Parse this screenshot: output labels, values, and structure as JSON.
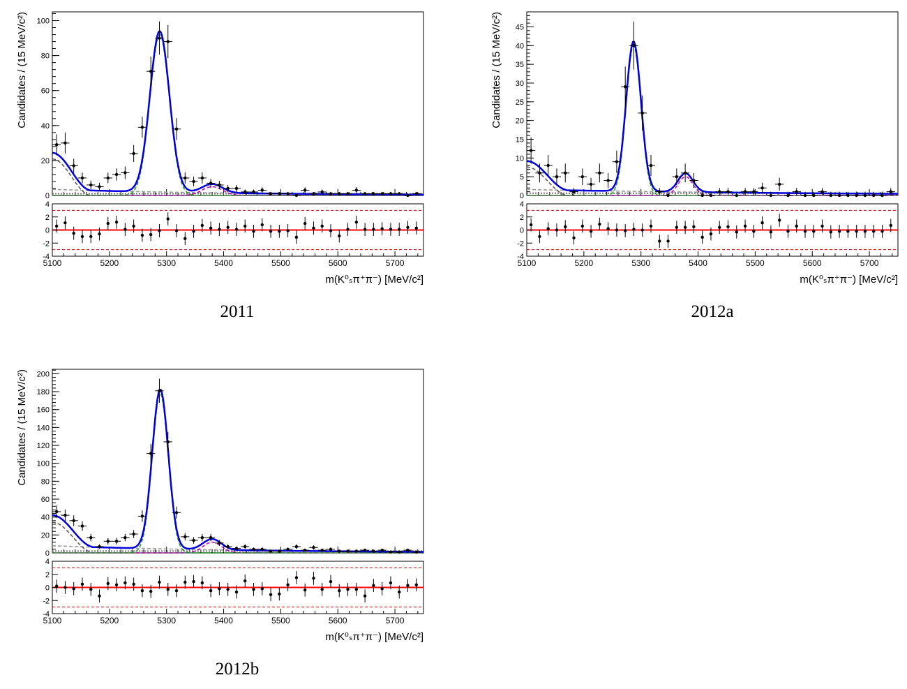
{
  "chart_data": [
    {
      "id": "2011",
      "type": "scatter",
      "caption": "2011",
      "ylabel": "Candidates / (15 MeV/c²)",
      "xlabel": "m(K⁰ₛπ⁺π⁻) [MeV/c²]",
      "xlim": [
        5100,
        5750
      ],
      "ylim": [
        0,
        105
      ],
      "yticks": [
        0,
        20,
        40,
        60,
        80,
        100
      ],
      "xticks": [
        5100,
        5200,
        5300,
        5400,
        5500,
        5600,
        5700
      ],
      "bin_width": 15,
      "points": [
        [
          5107.5,
          29,
          6
        ],
        [
          5122.5,
          30,
          6
        ],
        [
          5137.5,
          17,
          4
        ],
        [
          5152.5,
          10,
          3
        ],
        [
          5167.5,
          6,
          2.5
        ],
        [
          5182.5,
          5,
          2.3
        ],
        [
          5197.5,
          10,
          3
        ],
        [
          5212.5,
          12,
          3.5
        ],
        [
          5227.5,
          13,
          3.6
        ],
        [
          5242.5,
          24,
          4.9
        ],
        [
          5257.5,
          39,
          6
        ],
        [
          5272.5,
          71,
          8.4
        ],
        [
          5287.5,
          90,
          9.5
        ],
        [
          5302.5,
          88,
          9.4
        ],
        [
          5317.5,
          38,
          6.2
        ],
        [
          5332.5,
          10,
          3.2
        ],
        [
          5347.5,
          8,
          2.8
        ],
        [
          5362.5,
          10,
          3.2
        ],
        [
          5377.5,
          7,
          2.6
        ],
        [
          5392.5,
          6,
          2.4
        ],
        [
          5407.5,
          4,
          2
        ],
        [
          5422.5,
          4,
          2
        ],
        [
          5437.5,
          2,
          1.4
        ],
        [
          5452.5,
          2,
          1.4
        ],
        [
          5467.5,
          3,
          1.7
        ],
        [
          5482.5,
          1,
          1
        ],
        [
          5497.5,
          1,
          1
        ],
        [
          5512.5,
          1,
          1
        ],
        [
          5527.5,
          0,
          1
        ],
        [
          5542.5,
          3,
          1.7
        ],
        [
          5557.5,
          1,
          1
        ],
        [
          5572.5,
          2,
          1.4
        ],
        [
          5587.5,
          1,
          1
        ],
        [
          5602.5,
          1,
          1
        ],
        [
          5617.5,
          1,
          1
        ],
        [
          5632.5,
          3,
          1.7
        ],
        [
          5647.5,
          1,
          1
        ],
        [
          5662.5,
          1,
          1
        ],
        [
          5677.5,
          1,
          1
        ],
        [
          5692.5,
          1,
          1
        ],
        [
          5707.5,
          1,
          1
        ],
        [
          5722.5,
          0,
          1
        ],
        [
          5737.5,
          1,
          1
        ]
      ],
      "pulls": [
        [
          5107.5,
          0.6
        ],
        [
          5122.5,
          1.1
        ],
        [
          5137.5,
          -0.5
        ],
        [
          5152.5,
          -1.0
        ],
        [
          5167.5,
          -1.0
        ],
        [
          5182.5,
          -0.6
        ],
        [
          5197.5,
          1.0
        ],
        [
          5212.5,
          1.2
        ],
        [
          5227.5,
          0.1
        ],
        [
          5242.5,
          0.6
        ],
        [
          5257.5,
          -0.8
        ],
        [
          5272.5,
          -0.7
        ],
        [
          5287.5,
          -0.1
        ],
        [
          5302.5,
          1.7
        ],
        [
          5317.5,
          -0.1
        ],
        [
          5332.5,
          -1.3
        ],
        [
          5347.5,
          -0.2
        ],
        [
          5362.5,
          0.7
        ],
        [
          5377.5,
          0.3
        ],
        [
          5392.5,
          0.1
        ],
        [
          5407.5,
          0.4
        ],
        [
          5422.5,
          0.1
        ],
        [
          5437.5,
          0.6
        ],
        [
          5452.5,
          -0.2
        ],
        [
          5467.5,
          0.8
        ],
        [
          5482.5,
          -0.2
        ],
        [
          5497.5,
          -0.2
        ],
        [
          5512.5,
          -0.1
        ],
        [
          5527.5,
          -1.1
        ],
        [
          5542.5,
          1.0
        ],
        [
          5557.5,
          0.3
        ],
        [
          5572.5,
          0.6
        ],
        [
          5587.5,
          -0.1
        ],
        [
          5602.5,
          -0.9
        ],
        [
          5617.5,
          0.1
        ],
        [
          5632.5,
          1.2
        ],
        [
          5647.5,
          0.1
        ],
        [
          5662.5,
          0.1
        ],
        [
          5677.5,
          0.2
        ],
        [
          5692.5,
          0.1
        ],
        [
          5707.5,
          0.1
        ],
        [
          5722.5,
          0.4
        ],
        [
          5737.5,
          0.3
        ]
      ],
      "pull_ylim": [
        -4,
        4
      ],
      "pull_yticks": [
        -4,
        -2,
        0,
        2,
        4
      ],
      "pull_bands": [
        -3,
        3
      ],
      "model": {
        "signal_mean": 5288,
        "signal_sigma": 17,
        "signal_amp": 92,
        "peaking_mean": 5380,
        "peaking_sigma": 18,
        "peaking_amp": 5,
        "partreco_amp": 22,
        "partreco_end": 5165,
        "comb_amp": 3.5,
        "comb_slope": 0.003,
        "grey2_amp": 1
      }
    },
    {
      "id": "2012a",
      "type": "scatter",
      "caption": "2012a",
      "ylabel": "Candidates / (15 MeV/c²)",
      "xlabel": "m(K⁰ₛπ⁺π⁻) [MeV/c²]",
      "xlim": [
        5100,
        5750
      ],
      "ylim": [
        0,
        49
      ],
      "yticks": [
        0,
        5,
        10,
        15,
        20,
        25,
        30,
        35,
        40,
        45
      ],
      "xticks": [
        5100,
        5200,
        5300,
        5400,
        5500,
        5600,
        5700
      ],
      "bin_width": 15,
      "points": [
        [
          5107.5,
          12,
          3.5
        ],
        [
          5122.5,
          6,
          2.5
        ],
        [
          5137.5,
          8,
          2.8
        ],
        [
          5152.5,
          5,
          2.2
        ],
        [
          5167.5,
          6,
          2.5
        ],
        [
          5182.5,
          1,
          1
        ],
        [
          5197.5,
          5,
          2.2
        ],
        [
          5212.5,
          3,
          1.7
        ],
        [
          5227.5,
          6,
          2.5
        ],
        [
          5242.5,
          4,
          2
        ],
        [
          5257.5,
          9,
          3
        ],
        [
          5272.5,
          29,
          5.4
        ],
        [
          5287.5,
          40,
          6.4
        ],
        [
          5302.5,
          22,
          4.7
        ],
        [
          5317.5,
          8,
          2.8
        ],
        [
          5332.5,
          1,
          1
        ],
        [
          5347.5,
          0,
          1
        ],
        [
          5362.5,
          5,
          2.2
        ],
        [
          5377.5,
          6,
          2.5
        ],
        [
          5392.5,
          4,
          2
        ],
        [
          5407.5,
          0,
          1
        ],
        [
          5422.5,
          0,
          1
        ],
        [
          5437.5,
          1,
          1
        ],
        [
          5452.5,
          1,
          1
        ],
        [
          5467.5,
          0,
          1
        ],
        [
          5482.5,
          1,
          1
        ],
        [
          5497.5,
          1,
          1
        ],
        [
          5512.5,
          2,
          1.4
        ],
        [
          5527.5,
          0,
          1
        ],
        [
          5542.5,
          3,
          1.7
        ],
        [
          5557.5,
          0,
          1
        ],
        [
          5572.5,
          1,
          1
        ],
        [
          5587.5,
          0,
          1
        ],
        [
          5602.5,
          0,
          1
        ],
        [
          5617.5,
          1,
          1
        ],
        [
          5632.5,
          0,
          1
        ],
        [
          5647.5,
          0,
          1
        ],
        [
          5662.5,
          0,
          1
        ],
        [
          5677.5,
          0,
          1
        ],
        [
          5692.5,
          0,
          1
        ],
        [
          5707.5,
          0,
          1
        ],
        [
          5722.5,
          0,
          1
        ],
        [
          5737.5,
          1,
          1
        ]
      ],
      "pulls": [
        [
          5107.5,
          0.8
        ],
        [
          5122.5,
          -1.0
        ],
        [
          5137.5,
          0.2
        ],
        [
          5152.5,
          0.0
        ],
        [
          5167.5,
          0.5
        ],
        [
          5182.5,
          -1.2
        ],
        [
          5197.5,
          0.6
        ],
        [
          5212.5,
          -0.2
        ],
        [
          5227.5,
          0.9
        ],
        [
          5242.5,
          0.2
        ],
        [
          5257.5,
          0.0
        ],
        [
          5272.5,
          -0.1
        ],
        [
          5287.5,
          0.1
        ],
        [
          5302.5,
          0.0
        ],
        [
          5317.5,
          0.6
        ],
        [
          5332.5,
          -1.7
        ],
        [
          5347.5,
          -1.7
        ],
        [
          5362.5,
          0.4
        ],
        [
          5377.5,
          0.4
        ],
        [
          5392.5,
          0.5
        ],
        [
          5407.5,
          -1.1
        ],
        [
          5422.5,
          -0.6
        ],
        [
          5437.5,
          0.4
        ],
        [
          5452.5,
          0.5
        ],
        [
          5467.5,
          -0.3
        ],
        [
          5482.5,
          0.6
        ],
        [
          5497.5,
          -0.2
        ],
        [
          5512.5,
          1.1
        ],
        [
          5527.5,
          -0.3
        ],
        [
          5542.5,
          1.5
        ],
        [
          5557.5,
          -0.2
        ],
        [
          5572.5,
          0.6
        ],
        [
          5587.5,
          -0.2
        ],
        [
          5602.5,
          -0.2
        ],
        [
          5617.5,
          0.6
        ],
        [
          5632.5,
          -0.3
        ],
        [
          5647.5,
          -0.2
        ],
        [
          5662.5,
          -0.2
        ],
        [
          5677.5,
          -0.2
        ],
        [
          5692.5,
          -0.2
        ],
        [
          5707.5,
          -0.2
        ],
        [
          5722.5,
          -0.2
        ],
        [
          5737.5,
          0.7
        ]
      ],
      "pull_ylim": [
        -4,
        4
      ],
      "pull_yticks": [
        -4,
        -2,
        0,
        2,
        4
      ],
      "pull_bands": [
        -3,
        3
      ],
      "model": {
        "signal_mean": 5287,
        "signal_sigma": 13,
        "signal_amp": 40,
        "peaking_mean": 5378,
        "peaking_sigma": 13,
        "peaking_amp": 5,
        "partreco_amp": 8,
        "partreco_end": 5170,
        "comb_amp": 1.6,
        "comb_slope": 0.002,
        "grey2_amp": 0.6
      }
    },
    {
      "id": "2012b",
      "type": "scatter",
      "caption": "2012b",
      "ylabel": "Candidates / (15 MeV/c²)",
      "xlabel": "m(K⁰ₛπ⁺π⁻) [MeV/c²]",
      "xlim": [
        5100,
        5750
      ],
      "ylim": [
        0,
        205
      ],
      "yticks": [
        0,
        20,
        40,
        60,
        80,
        100,
        120,
        140,
        160,
        180,
        200
      ],
      "xticks": [
        5100,
        5200,
        5300,
        5400,
        5500,
        5600,
        5700
      ],
      "bin_width": 15,
      "points": [
        [
          5107.5,
          46,
          7
        ],
        [
          5122.5,
          42,
          6.5
        ],
        [
          5137.5,
          36,
          6
        ],
        [
          5152.5,
          30,
          5.5
        ],
        [
          5167.5,
          17,
          4.1
        ],
        [
          5182.5,
          7,
          2.6
        ],
        [
          5197.5,
          13,
          3.6
        ],
        [
          5212.5,
          13,
          3.6
        ],
        [
          5227.5,
          17,
          4.1
        ],
        [
          5242.5,
          21,
          4.6
        ],
        [
          5257.5,
          41,
          6.4
        ],
        [
          5272.5,
          111,
          10.5
        ],
        [
          5287.5,
          181,
          13.5
        ],
        [
          5302.5,
          124,
          11.1
        ],
        [
          5317.5,
          45,
          6.7
        ],
        [
          5332.5,
          18,
          4.2
        ],
        [
          5347.5,
          14,
          3.7
        ],
        [
          5362.5,
          17,
          4.1
        ],
        [
          5377.5,
          17,
          4.1
        ],
        [
          5392.5,
          11,
          3.3
        ],
        [
          5407.5,
          7,
          2.6
        ],
        [
          5422.5,
          5,
          2.2
        ],
        [
          5437.5,
          7,
          2.6
        ],
        [
          5452.5,
          4,
          2
        ],
        [
          5467.5,
          4,
          2
        ],
        [
          5482.5,
          2,
          1.4
        ],
        [
          5497.5,
          2,
          1.4
        ],
        [
          5512.5,
          4,
          2
        ],
        [
          5527.5,
          7,
          2.6
        ],
        [
          5542.5,
          3,
          1.7
        ],
        [
          5557.5,
          6,
          2.4
        ],
        [
          5572.5,
          3,
          1.7
        ],
        [
          5587.5,
          4,
          2
        ],
        [
          5602.5,
          2,
          1.4
        ],
        [
          5617.5,
          2,
          1.4
        ],
        [
          5632.5,
          2,
          1.4
        ],
        [
          5647.5,
          3,
          1.7
        ],
        [
          5662.5,
          2,
          1.4
        ],
        [
          5677.5,
          3,
          1.7
        ],
        [
          5692.5,
          1,
          1
        ],
        [
          5707.5,
          1,
          1
        ],
        [
          5722.5,
          3,
          1.7
        ],
        [
          5737.5,
          1,
          1
        ]
      ],
      "pulls": [
        [
          5107.5,
          0.2
        ],
        [
          5122.5,
          0.0
        ],
        [
          5137.5,
          -0.2
        ],
        [
          5152.5,
          0.5
        ],
        [
          5167.5,
          -0.3
        ],
        [
          5182.5,
          -1.3
        ],
        [
          5197.5,
          0.6
        ],
        [
          5212.5,
          0.4
        ],
        [
          5227.5,
          0.7
        ],
        [
          5242.5,
          0.5
        ],
        [
          5257.5,
          -0.5
        ],
        [
          5272.5,
          -0.6
        ],
        [
          5287.5,
          0.8
        ],
        [
          5302.5,
          -0.3
        ],
        [
          5317.5,
          -0.5
        ],
        [
          5332.5,
          0.8
        ],
        [
          5347.5,
          0.9
        ],
        [
          5362.5,
          0.7
        ],
        [
          5377.5,
          -0.5
        ],
        [
          5392.5,
          -0.2
        ],
        [
          5407.5,
          -0.3
        ],
        [
          5422.5,
          -0.7
        ],
        [
          5437.5,
          1.0
        ],
        [
          5452.5,
          -0.3
        ],
        [
          5467.5,
          -0.2
        ],
        [
          5482.5,
          -1.1
        ],
        [
          5497.5,
          -1.0
        ],
        [
          5512.5,
          0.4
        ],
        [
          5527.5,
          1.5
        ],
        [
          5542.5,
          -0.4
        ],
        [
          5557.5,
          1.4
        ],
        [
          5572.5,
          -0.3
        ],
        [
          5587.5,
          0.9
        ],
        [
          5602.5,
          -0.5
        ],
        [
          5617.5,
          -0.3
        ],
        [
          5632.5,
          -0.3
        ],
        [
          5647.5,
          -1.3
        ],
        [
          5662.5,
          0.3
        ],
        [
          5677.5,
          -0.2
        ],
        [
          5692.5,
          0.7
        ],
        [
          5707.5,
          -0.7
        ],
        [
          5722.5,
          0.3
        ],
        [
          5737.5,
          0.4
        ]
      ],
      "pull_ylim": [
        -4,
        4
      ],
      "pull_yticks": [
        -4,
        -2,
        0,
        2,
        4
      ],
      "pull_bands": [
        -3,
        3
      ],
      "model": {
        "signal_mean": 5289,
        "signal_sigma": 14,
        "signal_amp": 178,
        "peaking_mean": 5380,
        "peaking_sigma": 16,
        "peaking_amp": 12,
        "partreco_amp": 36,
        "partreco_end": 5170,
        "comb_amp": 8,
        "comb_slope": 0.003,
        "grey2_amp": 2
      }
    }
  ]
}
